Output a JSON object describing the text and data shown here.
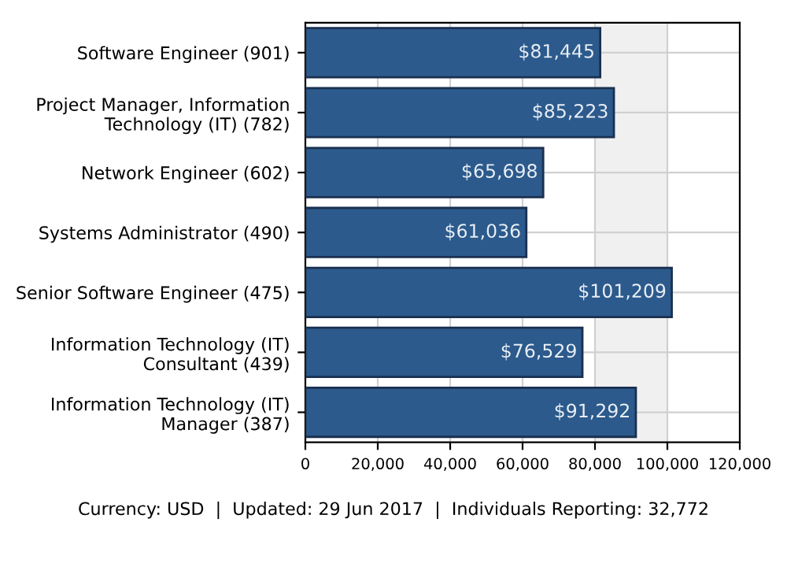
{
  "chart_data": {
    "type": "bar",
    "orientation": "horizontal",
    "categories": [
      "Software Engineer (901)",
      "Project Manager, Information Technology (IT) (782)",
      "Network Engineer (602)",
      "Systems Administrator (490)",
      "Senior Software Engineer (475)",
      "Information Technology (IT) Consultant (439)",
      "Information Technology (IT) Manager (387)"
    ],
    "values": [
      81445,
      85223,
      65698,
      61036,
      101209,
      76529,
      91292
    ],
    "value_labels": [
      "$81,445",
      "$85,223",
      "$65,698",
      "$61,036",
      "$101,209",
      "$76,529",
      "$91,292"
    ],
    "color": "#2c5a8c",
    "xlim": [
      0,
      120000
    ],
    "xticks": [
      {
        "value": 0,
        "label": "0"
      },
      {
        "value": 20000,
        "label": "20,000"
      },
      {
        "value": 40000,
        "label": "40,000"
      },
      {
        "value": 60000,
        "label": "60,000"
      },
      {
        "value": 80000,
        "label": "80,000"
      },
      {
        "value": 100000,
        "label": "100,000"
      },
      {
        "value": 120000,
        "label": "120,000"
      }
    ],
    "bands": [
      {
        "axis": "x",
        "from": 80000,
        "to": 100000,
        "color": "#f0f0f0"
      }
    ],
    "grid": true,
    "annotations": [
      "Currency: USD  |  Updated: 29 Jun 2017  |  Individuals Reporting: 32,772"
    ]
  }
}
